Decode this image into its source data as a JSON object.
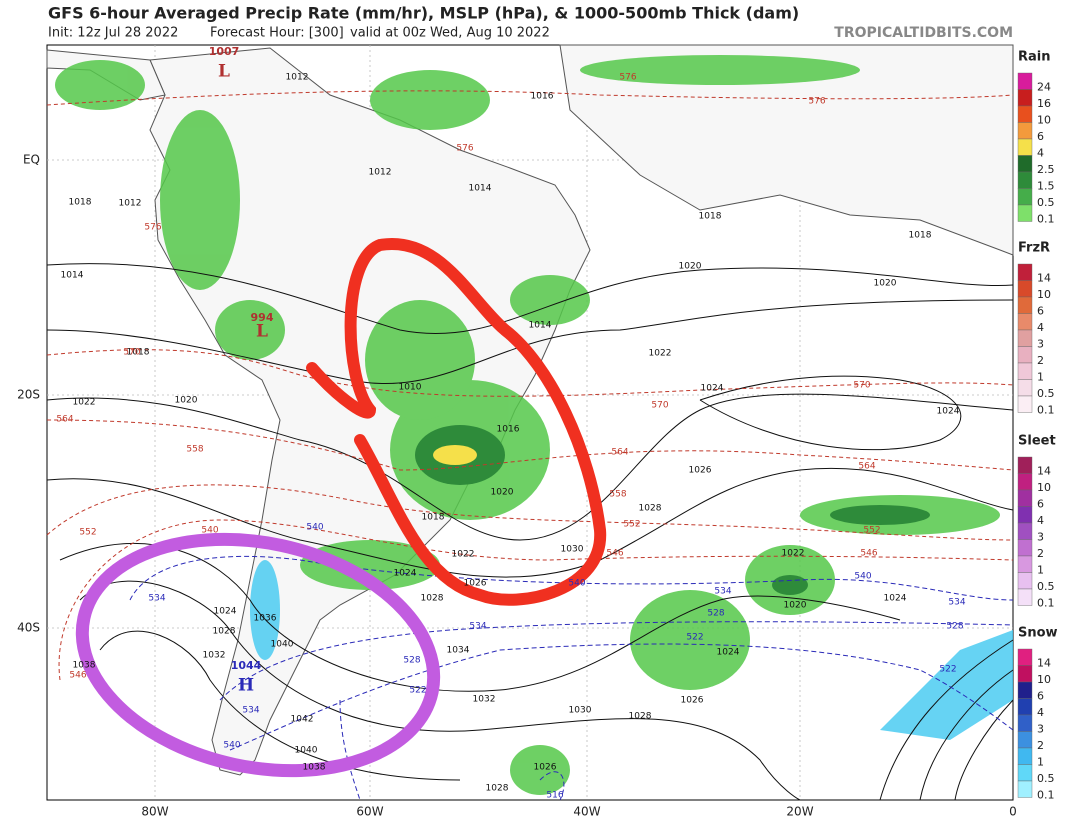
{
  "header": {
    "title": "GFS 6-hour Averaged Precip Rate (mm/hr), MSLP (hPa), & 1000-500mb Thick (dam)",
    "init": "Init: 12z Jul 28 2022",
    "forecast": "Forecast Hour: [300]",
    "valid": "valid at 00z Wed, Aug 10 2022",
    "site": "TROPICALTIDBITS.COM"
  },
  "map": {
    "lat_labels": [
      "EQ",
      "20S",
      "40S"
    ],
    "lon_labels": [
      "80W",
      "60W",
      "40W",
      "20W",
      "0"
    ],
    "centers": [
      {
        "letter": "L",
        "value": "1007"
      },
      {
        "letter": "L",
        "value": "994"
      },
      {
        "letter": "H",
        "value": "1044"
      }
    ],
    "pressure_labels": [
      "1012",
      "1016",
      "1012",
      "1014",
      "1018",
      "1018",
      "1014",
      "1020",
      "1020",
      "1014",
      "1022",
      "1024",
      "1024",
      "1026",
      "1028",
      "1030",
      "1022",
      "1024",
      "1020",
      "1024",
      "1026",
      "1028",
      "1030",
      "1032",
      "1034",
      "1036",
      "1040",
      "1042",
      "1040",
      "1038",
      "1024",
      "1028",
      "1032",
      "1038",
      "1026",
      "1028",
      "1018",
      "1012",
      "1018",
      "1022",
      "1020",
      "1018",
      "1022",
      "1026",
      "1028",
      "1024",
      "1020",
      "1016",
      "1010"
    ],
    "thickness_red": [
      "576",
      "576",
      "576",
      "576",
      "570",
      "570",
      "570",
      "564",
      "564",
      "564",
      "558",
      "558",
      "552",
      "552",
      "552",
      "546",
      "546",
      "546",
      "540"
    ],
    "thickness_blue": [
      "540",
      "534",
      "534",
      "534",
      "534",
      "528",
      "528",
      "528",
      "522",
      "522",
      "522",
      "534",
      "540",
      "540",
      "540",
      "516"
    ]
  },
  "legend": [
    {
      "title": "Rain",
      "labels": [
        "24",
        "16",
        "10",
        "6",
        "4",
        "2.5",
        "1.5",
        "0.5",
        "0.1"
      ],
      "colors": [
        "#d81c9c",
        "#c81e1e",
        "#e8501e",
        "#f39a3c",
        "#f5e04a",
        "#1f6b2a",
        "#2e8b3a",
        "#45ad4a",
        "#7ee06a"
      ]
    },
    {
      "title": "FrzR",
      "labels": [
        "14",
        "10",
        "6",
        "4",
        "3",
        "2",
        "1",
        "0.5",
        "0.1"
      ],
      "colors": [
        "#c0203a",
        "#d84a2a",
        "#e06a3a",
        "#e88a6a",
        "#e0a0a0",
        "#e8b0c0",
        "#f0c8d8",
        "#f5dde8",
        "#fbeef4"
      ]
    },
    {
      "title": "Sleet",
      "labels": [
        "14",
        "10",
        "6",
        "4",
        "3",
        "2",
        "1",
        "0.5",
        "0.1"
      ],
      "colors": [
        "#a0205a",
        "#c02080",
        "#a030a0",
        "#8030b0",
        "#a050c0",
        "#c070d0",
        "#d898e0",
        "#e8c0f0",
        "#f4e0f8"
      ]
    },
    {
      "title": "Snow",
      "labels": [
        "14",
        "10",
        "6",
        "4",
        "3",
        "2",
        "1",
        "0.5",
        "0.1"
      ],
      "colors": [
        "#e02080",
        "#c01060",
        "#20208c",
        "#2040b0",
        "#3060c8",
        "#3c90e0",
        "#40b8f0",
        "#60d8f8",
        "#a0f0ff"
      ]
    }
  ]
}
